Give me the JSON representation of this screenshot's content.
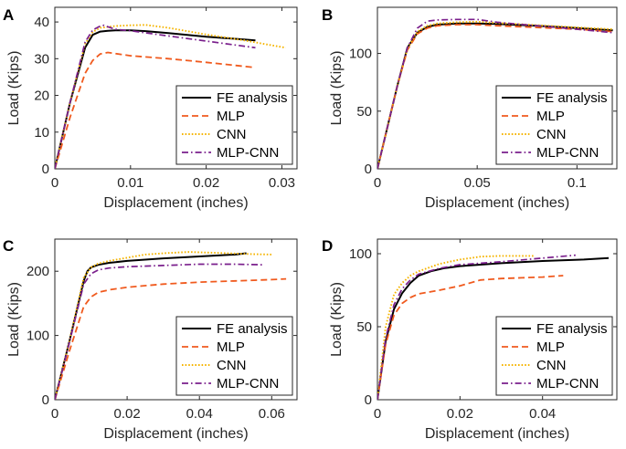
{
  "figure": {
    "line_colors": {
      "FE analysis": "#000000",
      "MLP": "#f05a1e",
      "CNN": "#f5b400",
      "MLP-CNN": "#7a1f8c"
    }
  },
  "chart_data": [
    {
      "panel_label": "A",
      "type": "line",
      "xlabel": "Displacement (inches)",
      "ylabel": "Load (Kips)",
      "xlim": [
        0,
        0.032
      ],
      "ylim": [
        0,
        44
      ],
      "xticks": [
        0,
        0.01,
        0.02,
        0.03
      ],
      "xtick_labels": [
        "0",
        "0.01",
        "0.02",
        "0.03"
      ],
      "yticks": [
        0,
        10,
        20,
        30,
        40
      ],
      "ytick_labels": [
        "0",
        "10",
        "20",
        "30",
        "40"
      ],
      "legend_position": "bottom-right",
      "series": [
        {
          "name": "FE analysis",
          "style": "solid",
          "x": [
            0,
            0.002,
            0.004,
            0.005,
            0.006,
            0.007,
            0.008,
            0.01,
            0.012,
            0.015,
            0.02,
            0.0265
          ],
          "y": [
            0,
            18,
            33,
            36.5,
            37.4,
            37.6,
            37.7,
            37.7,
            37.5,
            37,
            36,
            35
          ]
        },
        {
          "name": "MLP",
          "style": "dashed",
          "x": [
            0,
            0.002,
            0.004,
            0.005,
            0.006,
            0.007,
            0.008,
            0.01,
            0.015,
            0.02,
            0.0265
          ],
          "y": [
            0,
            14,
            26,
            29.5,
            31.3,
            31.7,
            31.4,
            30.8,
            30,
            29,
            27.6
          ]
        },
        {
          "name": "CNN",
          "style": "dotted",
          "x": [
            0,
            0.002,
            0.004,
            0.005,
            0.006,
            0.008,
            0.01,
            0.012,
            0.015,
            0.02,
            0.025,
            0.0305
          ],
          "y": [
            0,
            18,
            34,
            37.3,
            38.4,
            38.9,
            39.1,
            39.2,
            38.4,
            36.6,
            35,
            33
          ]
        },
        {
          "name": "MLP-CNN",
          "style": "dashdot",
          "x": [
            0,
            0.002,
            0.004,
            0.005,
            0.006,
            0.0065,
            0.007,
            0.008,
            0.01,
            0.015,
            0.02,
            0.0265
          ],
          "y": [
            0,
            18,
            34.5,
            37.8,
            38.9,
            39.1,
            38.7,
            38,
            37.6,
            36.2,
            34.8,
            33
          ]
        }
      ]
    },
    {
      "panel_label": "B",
      "type": "line",
      "xlabel": "Displacement (inches)",
      "ylabel": "Load (Kips)",
      "xlim": [
        0,
        0.12
      ],
      "ylim": [
        0,
        140
      ],
      "xticks": [
        0,
        0.05,
        0.1
      ],
      "xtick_labels": [
        "0",
        "0.05",
        "0.1"
      ],
      "yticks": [
        0,
        50,
        100
      ],
      "ytick_labels": [
        "0",
        "50",
        "100"
      ],
      "legend_position": "bottom-right",
      "series": [
        {
          "name": "FE analysis",
          "style": "solid",
          "x": [
            0,
            0.005,
            0.01,
            0.015,
            0.02,
            0.025,
            0.03,
            0.04,
            0.05,
            0.06,
            0.08,
            0.1,
            0.118
          ],
          "y": [
            0,
            36,
            72,
            105,
            118,
            123,
            125,
            126,
            126,
            125.5,
            124,
            122,
            120
          ]
        },
        {
          "name": "MLP",
          "style": "dashed",
          "x": [
            0,
            0.005,
            0.01,
            0.015,
            0.02,
            0.025,
            0.03,
            0.04,
            0.05,
            0.06,
            0.08,
            0.1,
            0.118
          ],
          "y": [
            0,
            36,
            72,
            103,
            117,
            122,
            124,
            125,
            125,
            124,
            122.5,
            121,
            119
          ]
        },
        {
          "name": "CNN",
          "style": "dotted",
          "x": [
            0,
            0.005,
            0.01,
            0.015,
            0.02,
            0.025,
            0.03,
            0.04,
            0.05,
            0.06,
            0.08,
            0.1,
            0.118
          ],
          "y": [
            0,
            36,
            72,
            104,
            119,
            124,
            126,
            127,
            127.5,
            126.5,
            124.5,
            122.5,
            121
          ]
        },
        {
          "name": "MLP-CNN",
          "style": "dashdot",
          "x": [
            0,
            0.005,
            0.01,
            0.015,
            0.02,
            0.025,
            0.03,
            0.04,
            0.05,
            0.06,
            0.08,
            0.1,
            0.118
          ],
          "y": [
            0,
            36,
            72,
            105,
            122,
            128,
            129,
            129.5,
            129.5,
            127,
            124,
            121,
            118
          ]
        }
      ]
    },
    {
      "panel_label": "C",
      "type": "line",
      "xlabel": "Displacement (inches)",
      "ylabel": "Load (Kips)",
      "xlim": [
        0,
        0.067
      ],
      "ylim": [
        0,
        250
      ],
      "xticks": [
        0,
        0.02,
        0.04,
        0.06
      ],
      "xtick_labels": [
        "0",
        "0.02",
        "0.04",
        "0.06"
      ],
      "yticks": [
        0,
        100,
        200
      ],
      "ytick_labels": [
        "0",
        "100",
        "200"
      ],
      "legend_position": "bottom-right",
      "series": [
        {
          "name": "FE analysis",
          "style": "solid",
          "x": [
            0,
            0.004,
            0.008,
            0.009,
            0.01,
            0.012,
            0.015,
            0.02,
            0.03,
            0.04,
            0.05,
            0.053
          ],
          "y": [
            0,
            90,
            185,
            200,
            206,
            210,
            213,
            216,
            220,
            223,
            226,
            228
          ]
        },
        {
          "name": "MLP",
          "style": "dashed",
          "x": [
            0,
            0.004,
            0.008,
            0.01,
            0.012,
            0.015,
            0.02,
            0.03,
            0.04,
            0.05,
            0.06,
            0.064
          ],
          "y": [
            0,
            75,
            145,
            160,
            167,
            171,
            175,
            180,
            183,
            185,
            187,
            188
          ]
        },
        {
          "name": "CNN",
          "style": "dotted",
          "x": [
            0,
            0.004,
            0.008,
            0.01,
            0.012,
            0.015,
            0.02,
            0.025,
            0.03,
            0.037,
            0.045,
            0.055,
            0.06
          ],
          "y": [
            0,
            90,
            190,
            206,
            212,
            216,
            221,
            226,
            228,
            230,
            228.5,
            226.5,
            226
          ]
        },
        {
          "name": "MLP-CNN",
          "style": "dashdot",
          "x": [
            0,
            0.004,
            0.008,
            0.01,
            0.012,
            0.015,
            0.02,
            0.03,
            0.04,
            0.05,
            0.058
          ],
          "y": [
            0,
            88,
            180,
            196,
            202,
            205,
            207,
            209,
            211,
            211,
            210
          ]
        }
      ]
    },
    {
      "panel_label": "D",
      "type": "line",
      "xlabel": "Displacement (inches)",
      "ylabel": "Load (Kips)",
      "xlim": [
        0,
        0.058
      ],
      "ylim": [
        0,
        110
      ],
      "xticks": [
        0,
        0.02,
        0.04
      ],
      "xtick_labels": [
        "0",
        "0.02",
        "0.04"
      ],
      "yticks": [
        0,
        50,
        100
      ],
      "ytick_labels": [
        "0",
        "50",
        "100"
      ],
      "legend_position": "bottom-right",
      "series": [
        {
          "name": "FE analysis",
          "style": "solid",
          "x": [
            0,
            0.002,
            0.004,
            0.006,
            0.008,
            0.01,
            0.013,
            0.016,
            0.02,
            0.03,
            0.04,
            0.05,
            0.056
          ],
          "y": [
            0,
            40,
            62,
            73,
            80,
            85,
            88,
            90,
            91.5,
            93.5,
            95,
            96,
            97
          ]
        },
        {
          "name": "MLP",
          "style": "dashed",
          "x": [
            0,
            0.002,
            0.004,
            0.006,
            0.008,
            0.01,
            0.015,
            0.02,
            0.025,
            0.03,
            0.035,
            0.04,
            0.045
          ],
          "y": [
            0,
            38,
            58,
            66,
            70,
            72.5,
            75,
            78,
            82,
            83,
            83.5,
            84,
            85
          ]
        },
        {
          "name": "CNN",
          "style": "dotted",
          "x": [
            0,
            0.002,
            0.004,
            0.006,
            0.008,
            0.01,
            0.015,
            0.02,
            0.025,
            0.03,
            0.035,
            0.038
          ],
          "y": [
            0,
            50,
            72,
            80,
            85,
            88,
            93,
            96,
            98,
            98.5,
            98.5,
            98.5
          ]
        },
        {
          "name": "MLP-CNN",
          "style": "dashdot",
          "x": [
            0,
            0.002,
            0.004,
            0.006,
            0.008,
            0.01,
            0.015,
            0.02,
            0.03,
            0.04,
            0.048
          ],
          "y": [
            0,
            42,
            65,
            76,
            82,
            86,
            90,
            92.5,
            94.5,
            97,
            99
          ]
        }
      ]
    }
  ]
}
